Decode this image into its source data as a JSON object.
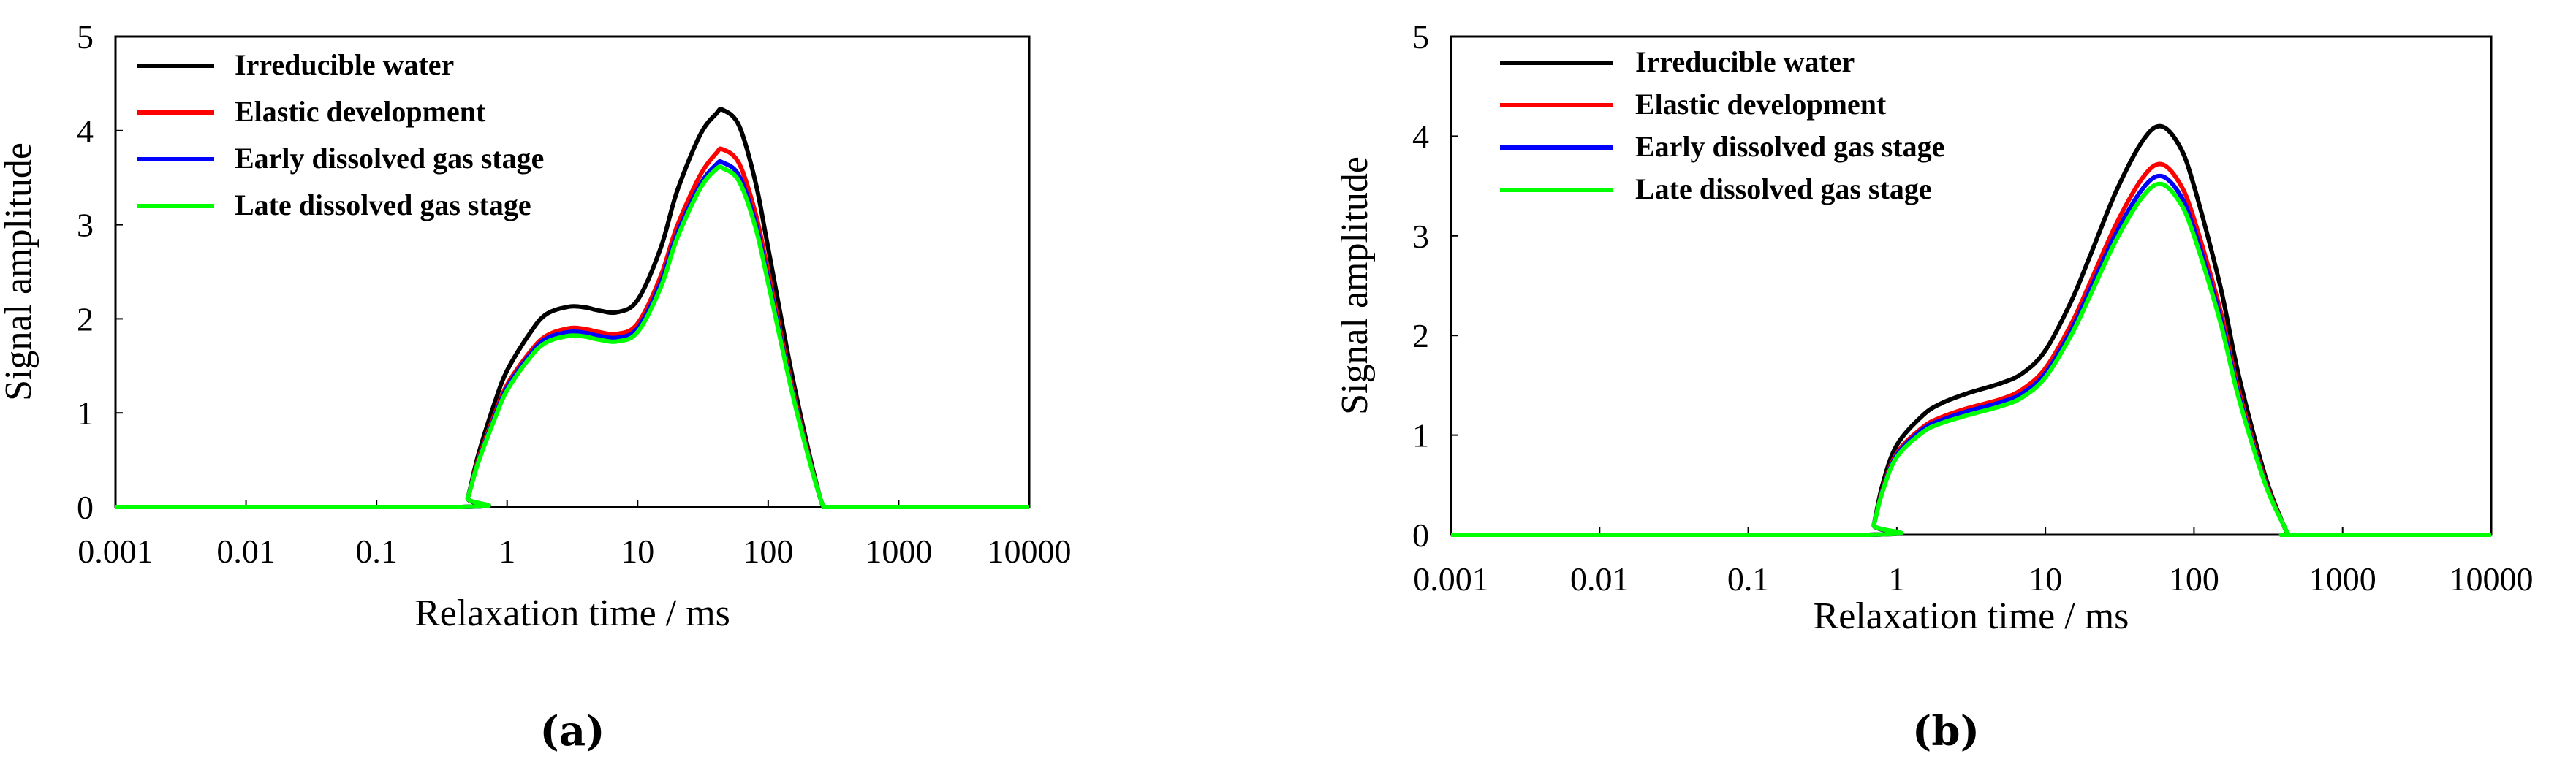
{
  "chart_data": [
    {
      "type": "line",
      "panel_label": "(a)",
      "xlabel": "Relaxation time / ms",
      "ylabel": "Signal amplitude",
      "xscale": "log",
      "xlim": [
        0.001,
        10000
      ],
      "ylim": [
        0,
        5
      ],
      "xticks": [
        "0.001",
        "0.01",
        "0.1",
        "1",
        "10",
        "100",
        "1000",
        "10000"
      ],
      "yticks": [
        "0",
        "1",
        "2",
        "3",
        "4",
        "5"
      ],
      "legend_position": "top-left",
      "grid": false,
      "series": [
        {
          "name": "Irreducible water",
          "color": "#000000",
          "x": [
            0.001,
            0.45,
            0.5,
            0.6,
            0.8,
            1,
            1.5,
            2,
            3,
            4,
            5,
            7,
            10,
            15,
            20,
            30,
            40,
            45,
            60,
            80,
            100,
            150,
            200,
            250,
            270,
            300,
            1000,
            10000
          ],
          "y": [
            0,
            0,
            0.1,
            0.55,
            1.1,
            1.45,
            1.85,
            2.05,
            2.13,
            2.12,
            2.09,
            2.07,
            2.2,
            2.75,
            3.35,
            3.95,
            4.18,
            4.22,
            4.05,
            3.45,
            2.75,
            1.45,
            0.65,
            0.1,
            0,
            0,
            0,
            0
          ]
        },
        {
          "name": "Elastic development",
          "color": "#ff0000",
          "x": [
            0.001,
            0.45,
            0.5,
            0.6,
            0.8,
            1,
            1.5,
            2,
            3,
            4,
            5,
            7,
            10,
            15,
            20,
            30,
            40,
            45,
            60,
            80,
            100,
            150,
            200,
            250,
            270,
            300,
            1000,
            10000
          ],
          "y": [
            0,
            0,
            0.1,
            0.5,
            0.98,
            1.3,
            1.65,
            1.82,
            1.9,
            1.89,
            1.86,
            1.84,
            1.95,
            2.45,
            2.98,
            3.52,
            3.76,
            3.8,
            3.65,
            3.12,
            2.5,
            1.32,
            0.6,
            0.1,
            0,
            0,
            0,
            0
          ]
        },
        {
          "name": "Early dissolved gas stage",
          "color": "#0000ff",
          "x": [
            0.001,
            0.45,
            0.5,
            0.6,
            0.8,
            1,
            1.5,
            2,
            3,
            4,
            5,
            7,
            10,
            15,
            20,
            30,
            40,
            45,
            60,
            80,
            100,
            150,
            200,
            250,
            270,
            300,
            1000,
            10000
          ],
          "y": [
            0,
            0,
            0.1,
            0.48,
            0.95,
            1.27,
            1.62,
            1.79,
            1.86,
            1.85,
            1.82,
            1.8,
            1.9,
            2.38,
            2.9,
            3.42,
            3.64,
            3.66,
            3.52,
            3.02,
            2.42,
            1.28,
            0.58,
            0.1,
            0,
            0,
            0,
            0
          ]
        },
        {
          "name": "Late dissolved gas stage",
          "color": "#00ff00",
          "x": [
            0.001,
            0.45,
            0.5,
            0.6,
            0.8,
            1,
            1.5,
            2,
            3,
            4,
            5,
            7,
            10,
            15,
            20,
            30,
            40,
            45,
            60,
            80,
            100,
            150,
            200,
            250,
            270,
            300,
            1000,
            10000
          ],
          "y": [
            0,
            0,
            0.1,
            0.47,
            0.93,
            1.24,
            1.59,
            1.75,
            1.82,
            1.81,
            1.78,
            1.76,
            1.86,
            2.33,
            2.85,
            3.38,
            3.59,
            3.6,
            3.46,
            2.97,
            2.38,
            1.26,
            0.57,
            0.1,
            0,
            0,
            0,
            0
          ]
        }
      ]
    },
    {
      "type": "line",
      "panel_label": "(b)",
      "xlabel": "Relaxation time / ms",
      "ylabel": "Signal amplitude",
      "xscale": "log",
      "xlim": [
        0.001,
        10000
      ],
      "ylim": [
        0,
        5
      ],
      "xticks": [
        "0.001",
        "0.01",
        "0.1",
        "1",
        "10",
        "100",
        "1000",
        "10000"
      ],
      "yticks": [
        "0",
        "1",
        "2",
        "3",
        "4",
        "5"
      ],
      "legend_position": "top-left",
      "grid": false,
      "series": [
        {
          "name": "Irreducible water",
          "color": "#000000",
          "x": [
            0.001,
            0.65,
            0.7,
            0.8,
            1,
            1.5,
            2,
            3,
            5,
            7,
            10,
            15,
            20,
            30,
            45,
            60,
            80,
            100,
            150,
            200,
            300,
            400,
            440,
            500,
            10000
          ],
          "y": [
            0,
            0,
            0.1,
            0.5,
            0.9,
            1.2,
            1.32,
            1.42,
            1.52,
            1.62,
            1.85,
            2.35,
            2.8,
            3.45,
            3.95,
            4.1,
            3.9,
            3.5,
            2.5,
            1.6,
            0.6,
            0.1,
            0,
            0,
            0
          ]
        },
        {
          "name": "Elastic development",
          "color": "#ff0000",
          "x": [
            0.001,
            0.65,
            0.7,
            0.8,
            1,
            1.5,
            2,
            3,
            5,
            7,
            10,
            15,
            20,
            30,
            45,
            60,
            80,
            100,
            150,
            200,
            300,
            400,
            440,
            500,
            10000
          ],
          "y": [
            0,
            0,
            0.1,
            0.45,
            0.82,
            1.08,
            1.18,
            1.27,
            1.36,
            1.46,
            1.67,
            2.12,
            2.53,
            3.12,
            3.58,
            3.72,
            3.53,
            3.17,
            2.26,
            1.45,
            0.55,
            0.1,
            0,
            0,
            0
          ]
        },
        {
          "name": "Early dissolved gas stage",
          "color": "#0000ff",
          "x": [
            0.001,
            0.65,
            0.7,
            0.8,
            1,
            1.5,
            2,
            3,
            5,
            7,
            10,
            15,
            20,
            30,
            45,
            60,
            80,
            100,
            150,
            200,
            300,
            400,
            440,
            500,
            10000
          ],
          "y": [
            0,
            0,
            0.1,
            0.44,
            0.8,
            1.06,
            1.15,
            1.24,
            1.33,
            1.42,
            1.62,
            2.06,
            2.46,
            3.03,
            3.47,
            3.6,
            3.42,
            3.07,
            2.19,
            1.4,
            0.53,
            0.1,
            0,
            0,
            0
          ]
        },
        {
          "name": "Late dissolved gas stage",
          "color": "#00ff00",
          "x": [
            0.001,
            0.65,
            0.7,
            0.8,
            1,
            1.5,
            2,
            3,
            5,
            7,
            10,
            15,
            20,
            30,
            45,
            60,
            80,
            100,
            150,
            200,
            300,
            400,
            440,
            500,
            10000
          ],
          "y": [
            0,
            0,
            0.1,
            0.43,
            0.78,
            1.03,
            1.12,
            1.2,
            1.29,
            1.38,
            1.58,
            2.01,
            2.4,
            2.96,
            3.39,
            3.52,
            3.34,
            3.0,
            2.14,
            1.37,
            0.52,
            0.1,
            0,
            0,
            0
          ]
        }
      ]
    }
  ]
}
